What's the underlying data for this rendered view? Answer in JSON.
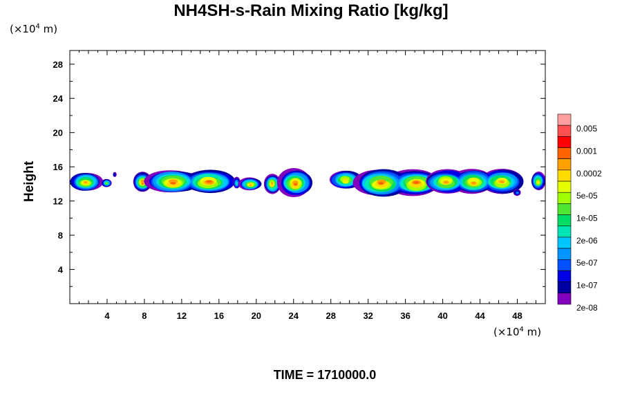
{
  "chart_data": {
    "type": "contour",
    "title": "NH4SH-s-Rain Mixing Ratio [kg/kg]",
    "xlabel": "",
    "ylabel": "Height",
    "x_unit": "(×10⁴ m)",
    "y_unit": "(×10⁴ m)",
    "x_unit_base": "(×10",
    "x_unit_exp": "4",
    "x_unit_tail": " m)",
    "y_unit_base": "(×10",
    "y_unit_exp": "4",
    "y_unit_tail": " m)",
    "xlim": [
      0,
      51
    ],
    "ylim": [
      0,
      29.6
    ],
    "x_ticks": [
      4,
      8,
      12,
      16,
      20,
      24,
      28,
      32,
      36,
      40,
      44,
      48
    ],
    "y_ticks": [
      4,
      8,
      12,
      16,
      20,
      24,
      28
    ],
    "colorbar": {
      "labels": [
        "0.005",
        "0.001",
        "0.0002",
        "5e-05",
        "1e-05",
        "2e-06",
        "5e-07",
        "1e-07",
        "2e-08"
      ],
      "colors": [
        "#ffa0a0",
        "#ff5050",
        "#ff0000",
        "#ff6400",
        "#ffa000",
        "#ffdc00",
        "#e6ff00",
        "#a0ff00",
        "#50e632",
        "#00dc64",
        "#00e6b4",
        "#00c8ff",
        "#0096ff",
        "#0050ff",
        "#0000e6",
        "#0000a0",
        "#8200be"
      ]
    },
    "features": [
      {
        "x": [
          0,
          3.4
        ],
        "y": [
          13.1,
          15.4
        ],
        "peak": 12
      },
      {
        "x": [
          3.4,
          4.5
        ],
        "y": [
          13.6,
          14.6
        ],
        "peak": 9
      },
      {
        "x": [
          4.6,
          5.0
        ],
        "y": [
          14.8,
          15.4
        ],
        "peak": 2
      },
      {
        "x": [
          6.8,
          8.8
        ],
        "y": [
          13.1,
          15.4
        ],
        "peak": 13
      },
      {
        "x": [
          9.2,
          16.8
        ],
        "y": [
          12.8,
          15.8
        ],
        "peak": 13
      },
      {
        "x": [
          17.5,
          18.3
        ],
        "y": [
          13.4,
          14.9
        ],
        "peak": 6
      },
      {
        "x": [
          18.2,
          20.6
        ],
        "y": [
          13.2,
          14.8
        ],
        "peak": 12
      },
      {
        "x": [
          20.8,
          22.6
        ],
        "y": [
          12.8,
          15.2
        ],
        "peak": 12
      },
      {
        "x": [
          22.4,
          26.0
        ],
        "y": [
          12.5,
          15.8
        ],
        "peak": 13
      },
      {
        "x": [
          27.8,
          31.3
        ],
        "y": [
          13.3,
          15.7
        ],
        "peak": 11
      },
      {
        "x": [
          31.5,
          39.0
        ],
        "y": [
          12.5,
          15.8
        ],
        "peak": 13
      },
      {
        "x": [
          38.9,
          47.8
        ],
        "y": [
          12.8,
          15.8
        ],
        "peak": 12
      },
      {
        "x": [
          47.6,
          48.4
        ],
        "y": [
          12.6,
          13.4
        ],
        "peak": 4
      },
      {
        "x": [
          49.5,
          51.0
        ],
        "y": [
          13.3,
          15.4
        ],
        "peak": 11
      }
    ],
    "time_label": "TIME = 1710000.0",
    "grid": false
  }
}
